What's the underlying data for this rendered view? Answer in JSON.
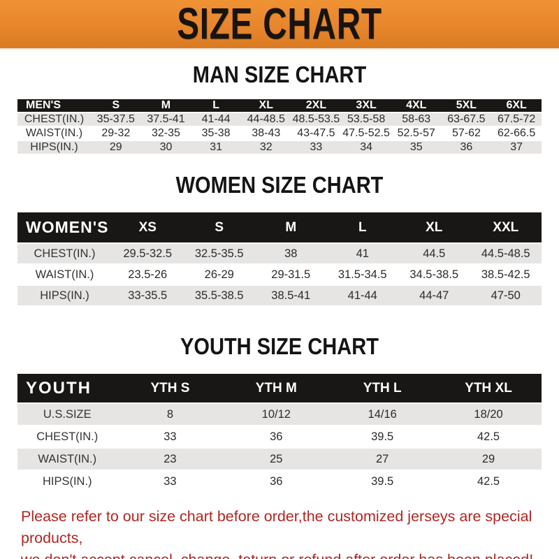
{
  "banner": {
    "title": "SIZE CHART",
    "bg_color": "#E7862C",
    "text_color": "#171310"
  },
  "colors": {
    "table_header_bg": "#191715",
    "table_header_text": "#FFFFFF",
    "row_gray": "#E6E5E3",
    "row_white": "#FFFFFF",
    "notice_red": "#AE2723"
  },
  "sections": [
    {
      "id": "man",
      "title": "MAN SIZE CHART",
      "header_label": "MEN'S",
      "columns": [
        "S",
        "M",
        "L",
        "XL",
        "2XL",
        "3XL",
        "4XL",
        "5XL",
        "6XL"
      ],
      "label_col_percent": 14,
      "rows": [
        {
          "label": "CHEST(IN.)",
          "values": [
            "35-37.5",
            "37.5-41",
            "41-44",
            "44-48.5",
            "48.5-53.5",
            "53.5-58",
            "58-63",
            "63-67.5",
            "67.5-72"
          ]
        },
        {
          "label": "WAIST(IN.)",
          "values": [
            "29-32",
            "32-35",
            "35-38",
            "38-43",
            "43-47.5",
            "47.5-52.5",
            "52.5-57",
            "57-62",
            "62-66.5"
          ]
        },
        {
          "label": "HIPS(IN.)",
          "values": [
            "29",
            "30",
            "31",
            "32",
            "33",
            "34",
            "35",
            "36",
            "37"
          ]
        }
      ]
    },
    {
      "id": "women",
      "title": "WOMEN SIZE CHART",
      "header_label": "WOMEN'S",
      "columns": [
        "XS",
        "S",
        "M",
        "L",
        "XL",
        "XXL"
      ],
      "label_col_percent": 18,
      "rows": [
        {
          "label": "CHEST(IN.)",
          "values": [
            "29.5-32.5",
            "32.5-35.5",
            "38",
            "41",
            "44.5",
            "44.5-48.5"
          ]
        },
        {
          "label": "WAIST(IN.)",
          "values": [
            "23.5-26",
            "26-29",
            "29-31.5",
            "31.5-34.5",
            "34.5-38.5",
            "38.5-42.5"
          ]
        },
        {
          "label": "HIPS(IN.)",
          "values": [
            "33-35.5",
            "35.5-38.5",
            "38.5-41",
            "41-44",
            "44-47",
            "47-50"
          ]
        }
      ]
    },
    {
      "id": "youth",
      "title": "YOUTH SIZE CHART",
      "header_label": "YOUTH",
      "columns": [
        "YTH S",
        "YTH M",
        "YTH L",
        "YTH XL"
      ],
      "label_col_percent": 19,
      "rows": [
        {
          "label": "U.S.SIZE",
          "values": [
            "8",
            "10/12",
            "14/16",
            "18/20"
          ]
        },
        {
          "label": "CHEST(IN.)",
          "values": [
            "33",
            "36",
            "39.5",
            "42.5"
          ]
        },
        {
          "label": "WAIST(IN.)",
          "values": [
            "23",
            "25",
            "27",
            "29"
          ]
        },
        {
          "label": "HIPS(IN.)",
          "values": [
            "33",
            "36",
            "39.5",
            "42.5"
          ]
        }
      ]
    }
  ],
  "notice": {
    "line1": "Please refer to our size chart before order,the customized jerseys are special products,",
    "line2": "we don't accept cancel, change, teturn or refund after order has been placed!"
  }
}
